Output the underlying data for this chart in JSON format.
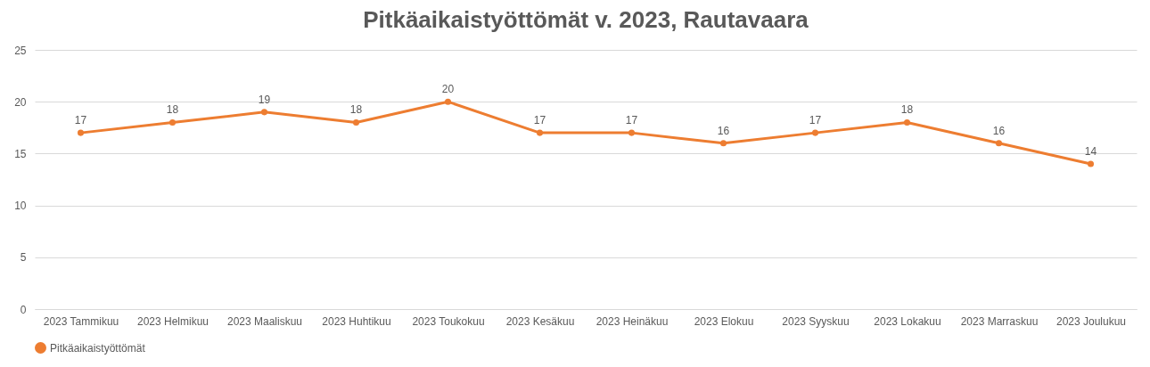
{
  "chart_data": {
    "type": "line",
    "title": "Pitkäaikaistyöttömät v. 2023, Rautavaara",
    "categories": [
      "2023 Tammikuu",
      "2023 Helmikuu",
      "2023 Maaliskuu",
      "2023 Huhtikuu",
      "2023 Toukokuu",
      "2023 Kesäkuu",
      "2023 Heinäkuu",
      "2023 Elokuu",
      "2023 Syyskuu",
      "2023 Lokakuu",
      "2023 Marraskuu",
      "2023 Joulukuu"
    ],
    "series": [
      {
        "name": "Pitkäaikaistyöttömät",
        "color": "#ed7d31",
        "values": [
          17,
          18,
          19,
          18,
          20,
          17,
          17,
          16,
          17,
          18,
          16,
          14
        ]
      }
    ],
    "ylim": [
      0,
      25
    ],
    "yticks": [
      0,
      5,
      10,
      15,
      20,
      25
    ],
    "grid": "y",
    "legend": "bottom",
    "marker": "circle",
    "data_labels": true
  }
}
